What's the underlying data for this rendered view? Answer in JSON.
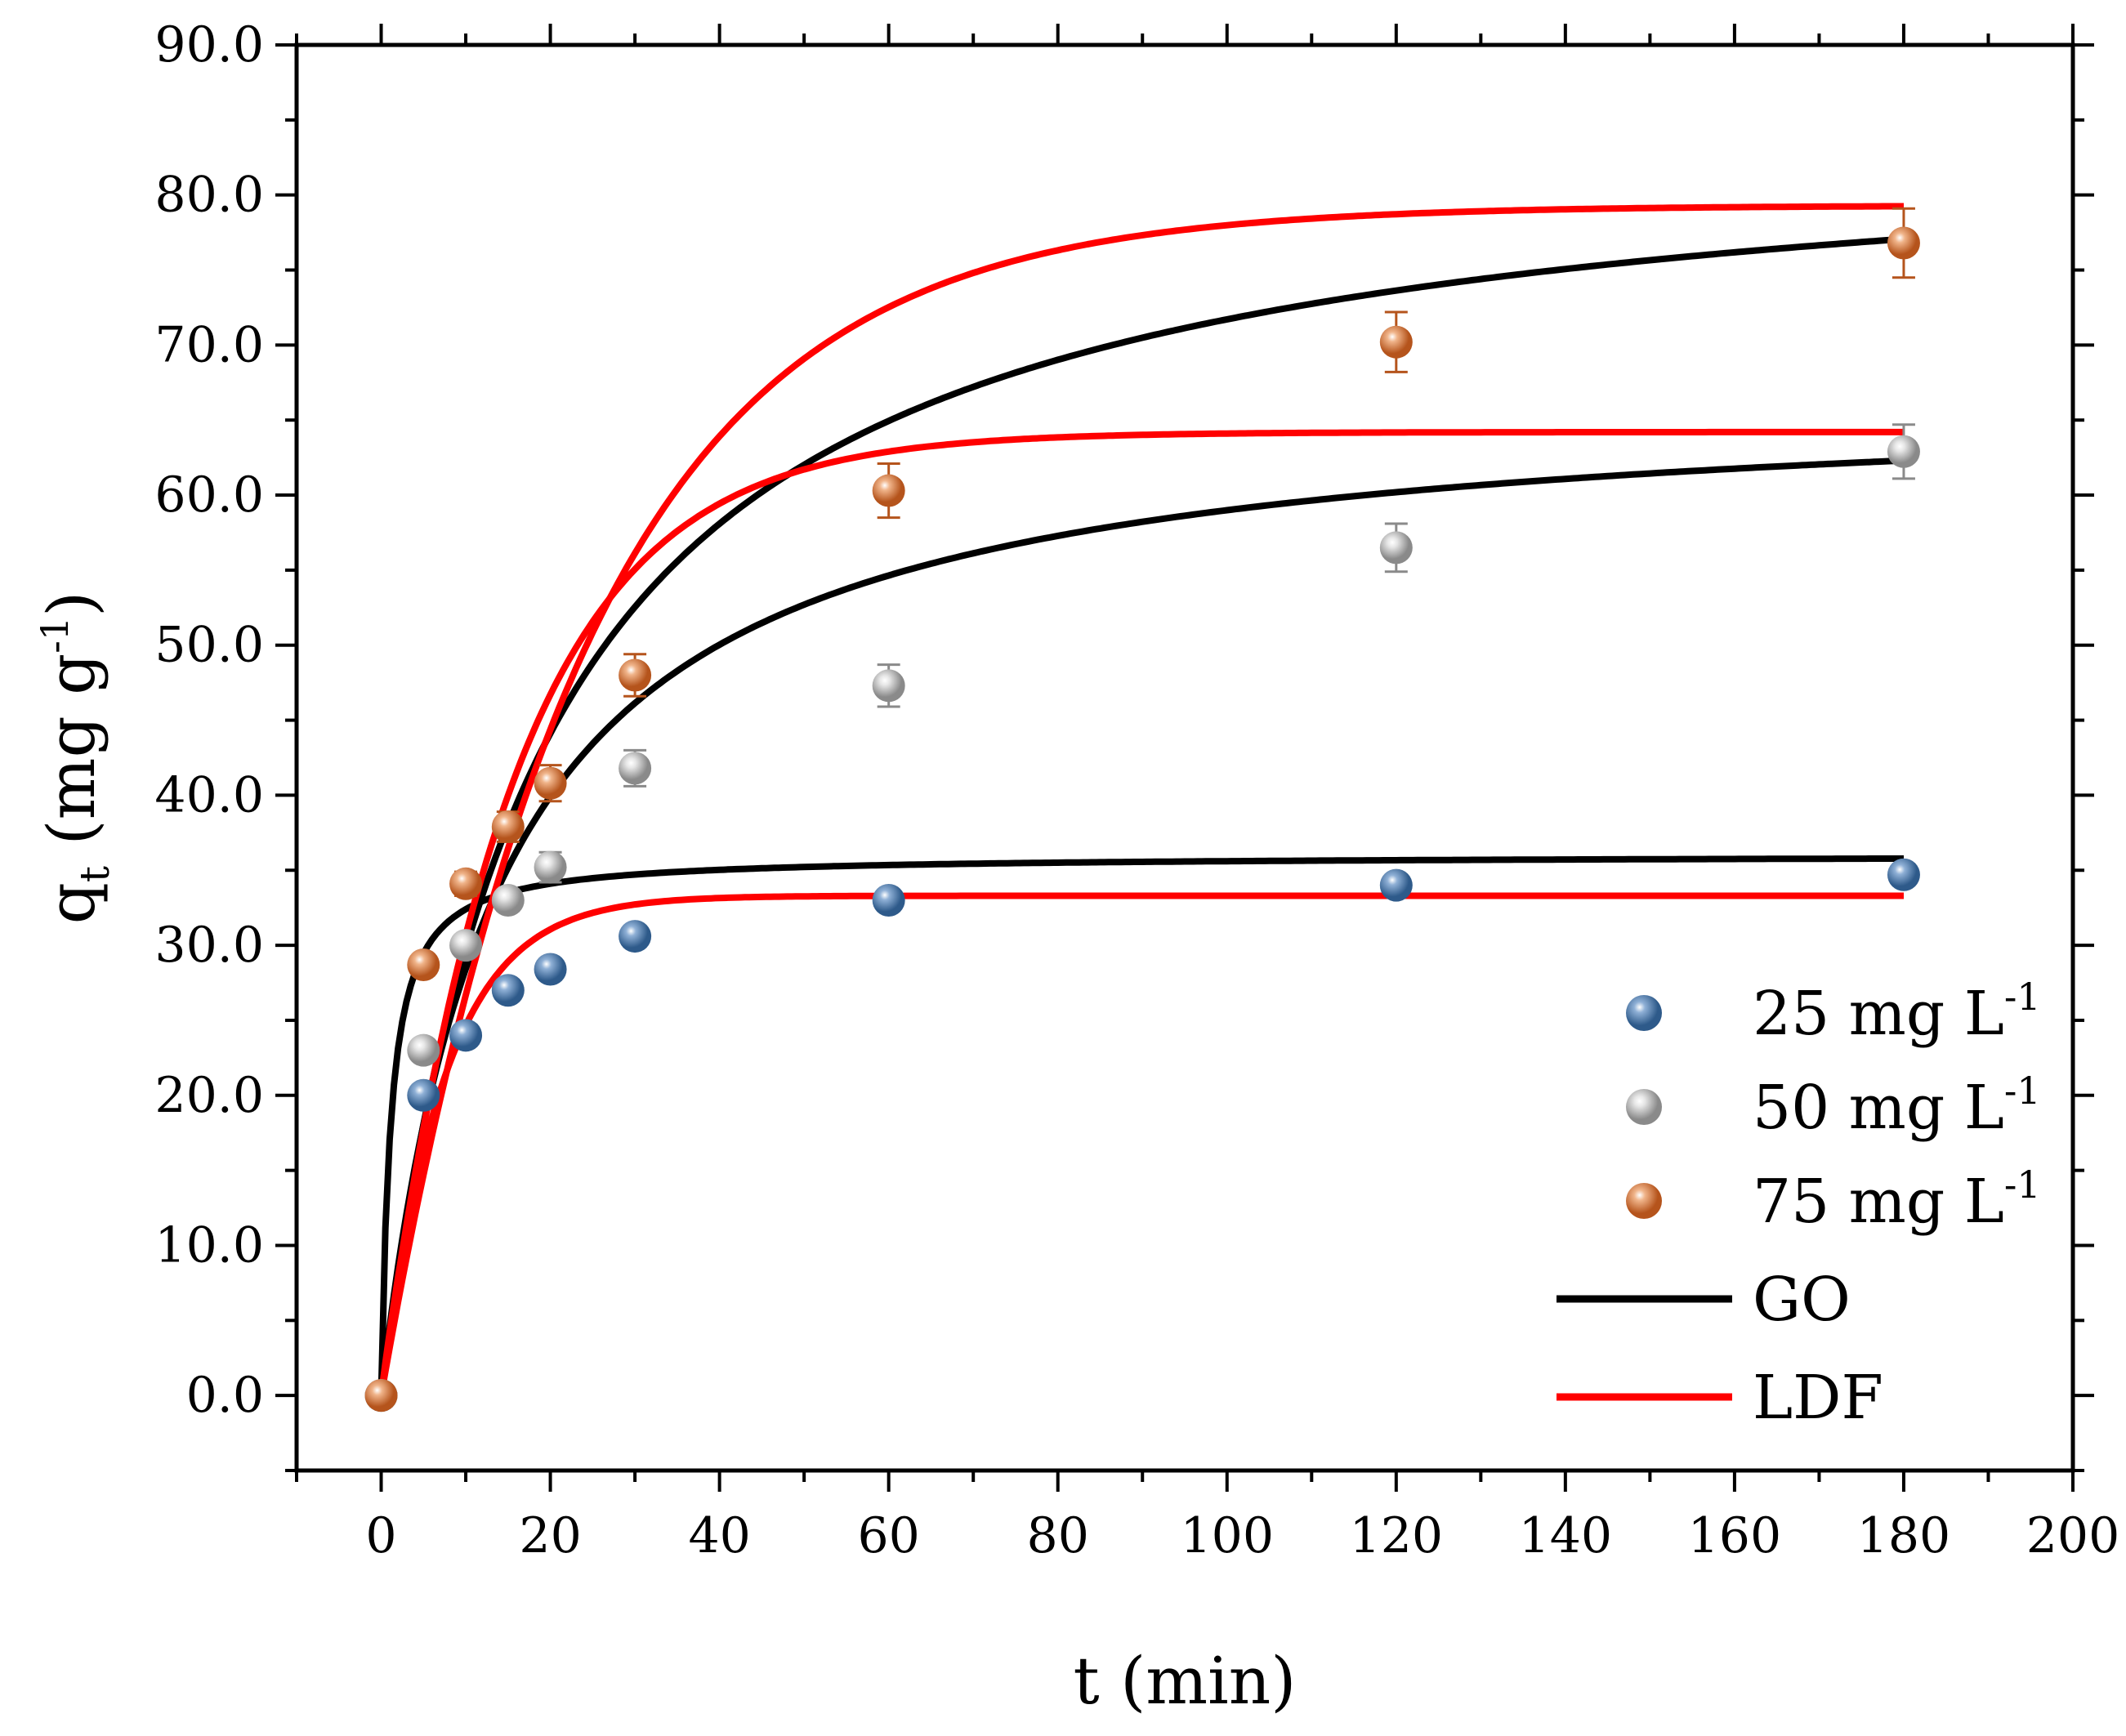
{
  "chart_data": {
    "type": "scatter",
    "title": "",
    "xlabel": "t (min)",
    "ylabel_main": "q",
    "ylabel_sub": "t",
    "ylabel_rest": " (mg g",
    "ylabel_sup": "-1",
    "ylabel_close": ")",
    "xlim": [
      -10,
      200
    ],
    "ylim": [
      -5,
      90
    ],
    "xticks": [
      0,
      20,
      40,
      60,
      80,
      100,
      120,
      140,
      160,
      180,
      200
    ],
    "yticks": [
      0,
      10,
      20,
      30,
      40,
      50,
      60,
      70,
      80,
      90
    ],
    "xtick_labels": [
      "0",
      "20",
      "40",
      "60",
      "80",
      "100",
      "120",
      "140",
      "160",
      "180",
      "200"
    ],
    "ytick_labels": [
      "0.0",
      "10.0",
      "20.0",
      "30.0",
      "40.0",
      "50.0",
      "60.0",
      "70.0",
      "80.0",
      "90.0"
    ],
    "legend_position": "bottom-right",
    "series": [
      {
        "name": "25 mg L",
        "sup": "-1",
        "kind": "scatter",
        "color": "#2e5a8a",
        "highlight": "#8fb0d6",
        "x": [
          0,
          5,
          10,
          15,
          20,
          30,
          60,
          120,
          180
        ],
        "y": [
          0,
          20.0,
          24.0,
          27.0,
          28.4,
          30.6,
          33.0,
          34.0,
          34.7
        ],
        "err": [
          0,
          0.4,
          0.5,
          0.5,
          0.6,
          0.5,
          0.6,
          0.6,
          0.7
        ]
      },
      {
        "name": "50 mg L",
        "sup": "-1",
        "kind": "scatter",
        "color": "#8a8a8a",
        "highlight": "#e6e6e6",
        "x": [
          0,
          5,
          10,
          15,
          20,
          30,
          60,
          120,
          180
        ],
        "y": [
          0,
          23.0,
          30.0,
          33.0,
          35.2,
          41.8,
          47.3,
          56.5,
          62.9
        ],
        "err": [
          0,
          0.5,
          0.6,
          0.7,
          1.0,
          1.2,
          1.4,
          1.6,
          1.8
        ]
      },
      {
        "name": "75 mg L",
        "sup": "-1",
        "kind": "scatter",
        "color": "#b5541c",
        "highlight": "#f0b48a",
        "x": [
          0,
          5,
          10,
          15,
          20,
          30,
          60,
          120,
          180
        ],
        "y": [
          0,
          28.7,
          34.1,
          37.9,
          40.8,
          48.0,
          60.3,
          70.2,
          76.8
        ],
        "err": [
          0,
          0.6,
          0.8,
          1.0,
          1.2,
          1.4,
          1.8,
          2.0,
          2.3
        ]
      },
      {
        "name": "GO",
        "kind": "line",
        "color": "#000000",
        "curves": [
          {
            "model": "go",
            "qe": 36.0,
            "k": 0.025
          },
          {
            "model": "go",
            "qe": 67.0,
            "k": 0.0011
          },
          {
            "model": "go",
            "qe": 85.0,
            "k": 0.000635
          }
        ]
      },
      {
        "name": "LDF",
        "kind": "line",
        "color": "#ff0000",
        "curves": [
          {
            "model": "ldf",
            "qe": 33.3,
            "k": 0.135
          },
          {
            "model": "ldf",
            "qe": 64.2,
            "k": 0.065
          },
          {
            "model": "ldf",
            "qe": 79.3,
            "k": 0.041
          }
        ]
      }
    ]
  }
}
